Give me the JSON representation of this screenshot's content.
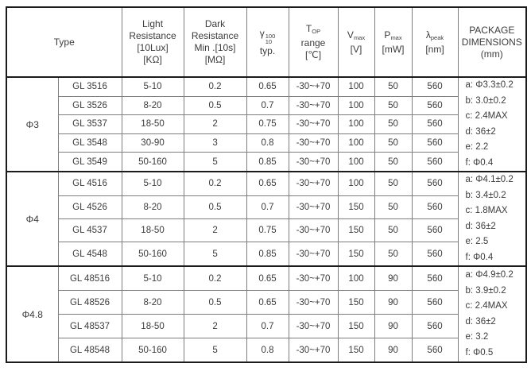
{
  "colors": {
    "background": "#ffffff",
    "border_outer": "#1b1b1b",
    "border_inner": "#7d7d7d",
    "text": "#3c3c3c"
  },
  "table": {
    "header": {
      "type": "Type",
      "light_resistance": {
        "line1": "Light",
        "line2": "Resistance",
        "line3": "[10Lux]",
        "line4": "[KΩ]"
      },
      "dark_resistance": {
        "line1": "Dark",
        "line2": "Resistance",
        "line3": "Min .[10s]",
        "line4": "[MΩ]"
      },
      "gamma": {
        "symbol": "γ",
        "sup": "100",
        "sub": "10",
        "line2": "typ."
      },
      "top_range": {
        "symbol": "T",
        "sub": "OP",
        "line2": "range",
        "line3": "[℃]"
      },
      "v_max": {
        "symbol": "V",
        "sub": "max",
        "line2": "[V]"
      },
      "p_max": {
        "symbol": "P",
        "sub": "max",
        "line2": "[mW]"
      },
      "lambda_peak": {
        "symbol": "λ",
        "sub": "peak",
        "line2": "[nm]"
      },
      "package": {
        "line1": "PACKAGE",
        "line2": "DIMENSIONS",
        "line3": "(mm)"
      }
    },
    "groups": [
      {
        "type": "Φ3",
        "rows": [
          {
            "model": "GL 3516",
            "light": "5-10",
            "dark": "0.2",
            "gamma": "0.65",
            "top_range": "-30~+70",
            "v_max": "100",
            "p_max": "50",
            "lambda_peak": "560"
          },
          {
            "model": "GL 3526",
            "light": "8-20",
            "dark": "0.5",
            "gamma": "0.7",
            "top_range": "-30~+70",
            "v_max": "100",
            "p_max": "50",
            "lambda_peak": "560"
          },
          {
            "model": "GL 3537",
            "light": "18-50",
            "dark": "2",
            "gamma": "0.75",
            "top_range": "-30~+70",
            "v_max": "100",
            "p_max": "50",
            "lambda_peak": "560"
          },
          {
            "model": "GL 3548",
            "light": "30-90",
            "dark": "3",
            "gamma": "0.8",
            "top_range": "-30~+70",
            "v_max": "100",
            "p_max": "50",
            "lambda_peak": "560"
          },
          {
            "model": "GL 3549",
            "light": "50-160",
            "dark": "5",
            "gamma": "0.85",
            "top_range": "-30~+70",
            "v_max": "100",
            "p_max": "50",
            "lambda_peak": "560"
          }
        ],
        "package_dimensions": [
          "a: Φ3.3±0.2",
          "b: 3.0±0.2",
          "c: 2.4MAX",
          "d: 36±2",
          "e: 2.2",
          "f: Φ0.4"
        ]
      },
      {
        "type": "Φ4",
        "rows": [
          {
            "model": "GL 4516",
            "light": "5-10",
            "dark": "0.2",
            "gamma": "0.65",
            "top_range": "-30~+70",
            "v_max": "100",
            "p_max": "50",
            "lambda_peak": "560"
          },
          {
            "model": "GL 4526",
            "light": "8-20",
            "dark": "0.5",
            "gamma": "0.7",
            "top_range": "-30~+70",
            "v_max": "150",
            "p_max": "50",
            "lambda_peak": "560"
          },
          {
            "model": "GL 4537",
            "light": "18-50",
            "dark": "2",
            "gamma": "0.75",
            "top_range": "-30~+70",
            "v_max": "150",
            "p_max": "50",
            "lambda_peak": "560"
          },
          {
            "model": "GL 4548",
            "light": "50-160",
            "dark": "5",
            "gamma": "0.85",
            "top_range": "-30~+70",
            "v_max": "150",
            "p_max": "50",
            "lambda_peak": "560"
          }
        ],
        "package_dimensions": [
          "a: Φ4.1±0.2",
          "b: 3.4±0.2",
          "c: 1.8MAX",
          "d: 36±2",
          "e: 2.5",
          "f: Φ0.4"
        ]
      },
      {
        "type": "Φ4.8",
        "rows": [
          {
            "model": "GL 48516",
            "light": "5-10",
            "dark": "0.2",
            "gamma": "0.65",
            "top_range": "-30~+70",
            "v_max": "100",
            "p_max": "90",
            "lambda_peak": "560"
          },
          {
            "model": "GL 48526",
            "light": "8-20",
            "dark": "0.5",
            "gamma": "0.65",
            "top_range": "-30~+70",
            "v_max": "150",
            "p_max": "90",
            "lambda_peak": "560"
          },
          {
            "model": "GL 48537",
            "light": "18-50",
            "dark": "2",
            "gamma": "0.7",
            "top_range": "-30~+70",
            "v_max": "150",
            "p_max": "90",
            "lambda_peak": "560"
          },
          {
            "model": "GL 48548",
            "light": "50-160",
            "dark": "5",
            "gamma": "0.8",
            "top_range": "-30~+70",
            "v_max": "150",
            "p_max": "90",
            "lambda_peak": "560"
          }
        ],
        "package_dimensions": [
          "a: Φ4.9±0.2",
          "b: 3.9±0.2",
          "c: 2.4MAX",
          "d: 36±2",
          "e: 3.2",
          "f: Φ0.5"
        ]
      }
    ]
  }
}
